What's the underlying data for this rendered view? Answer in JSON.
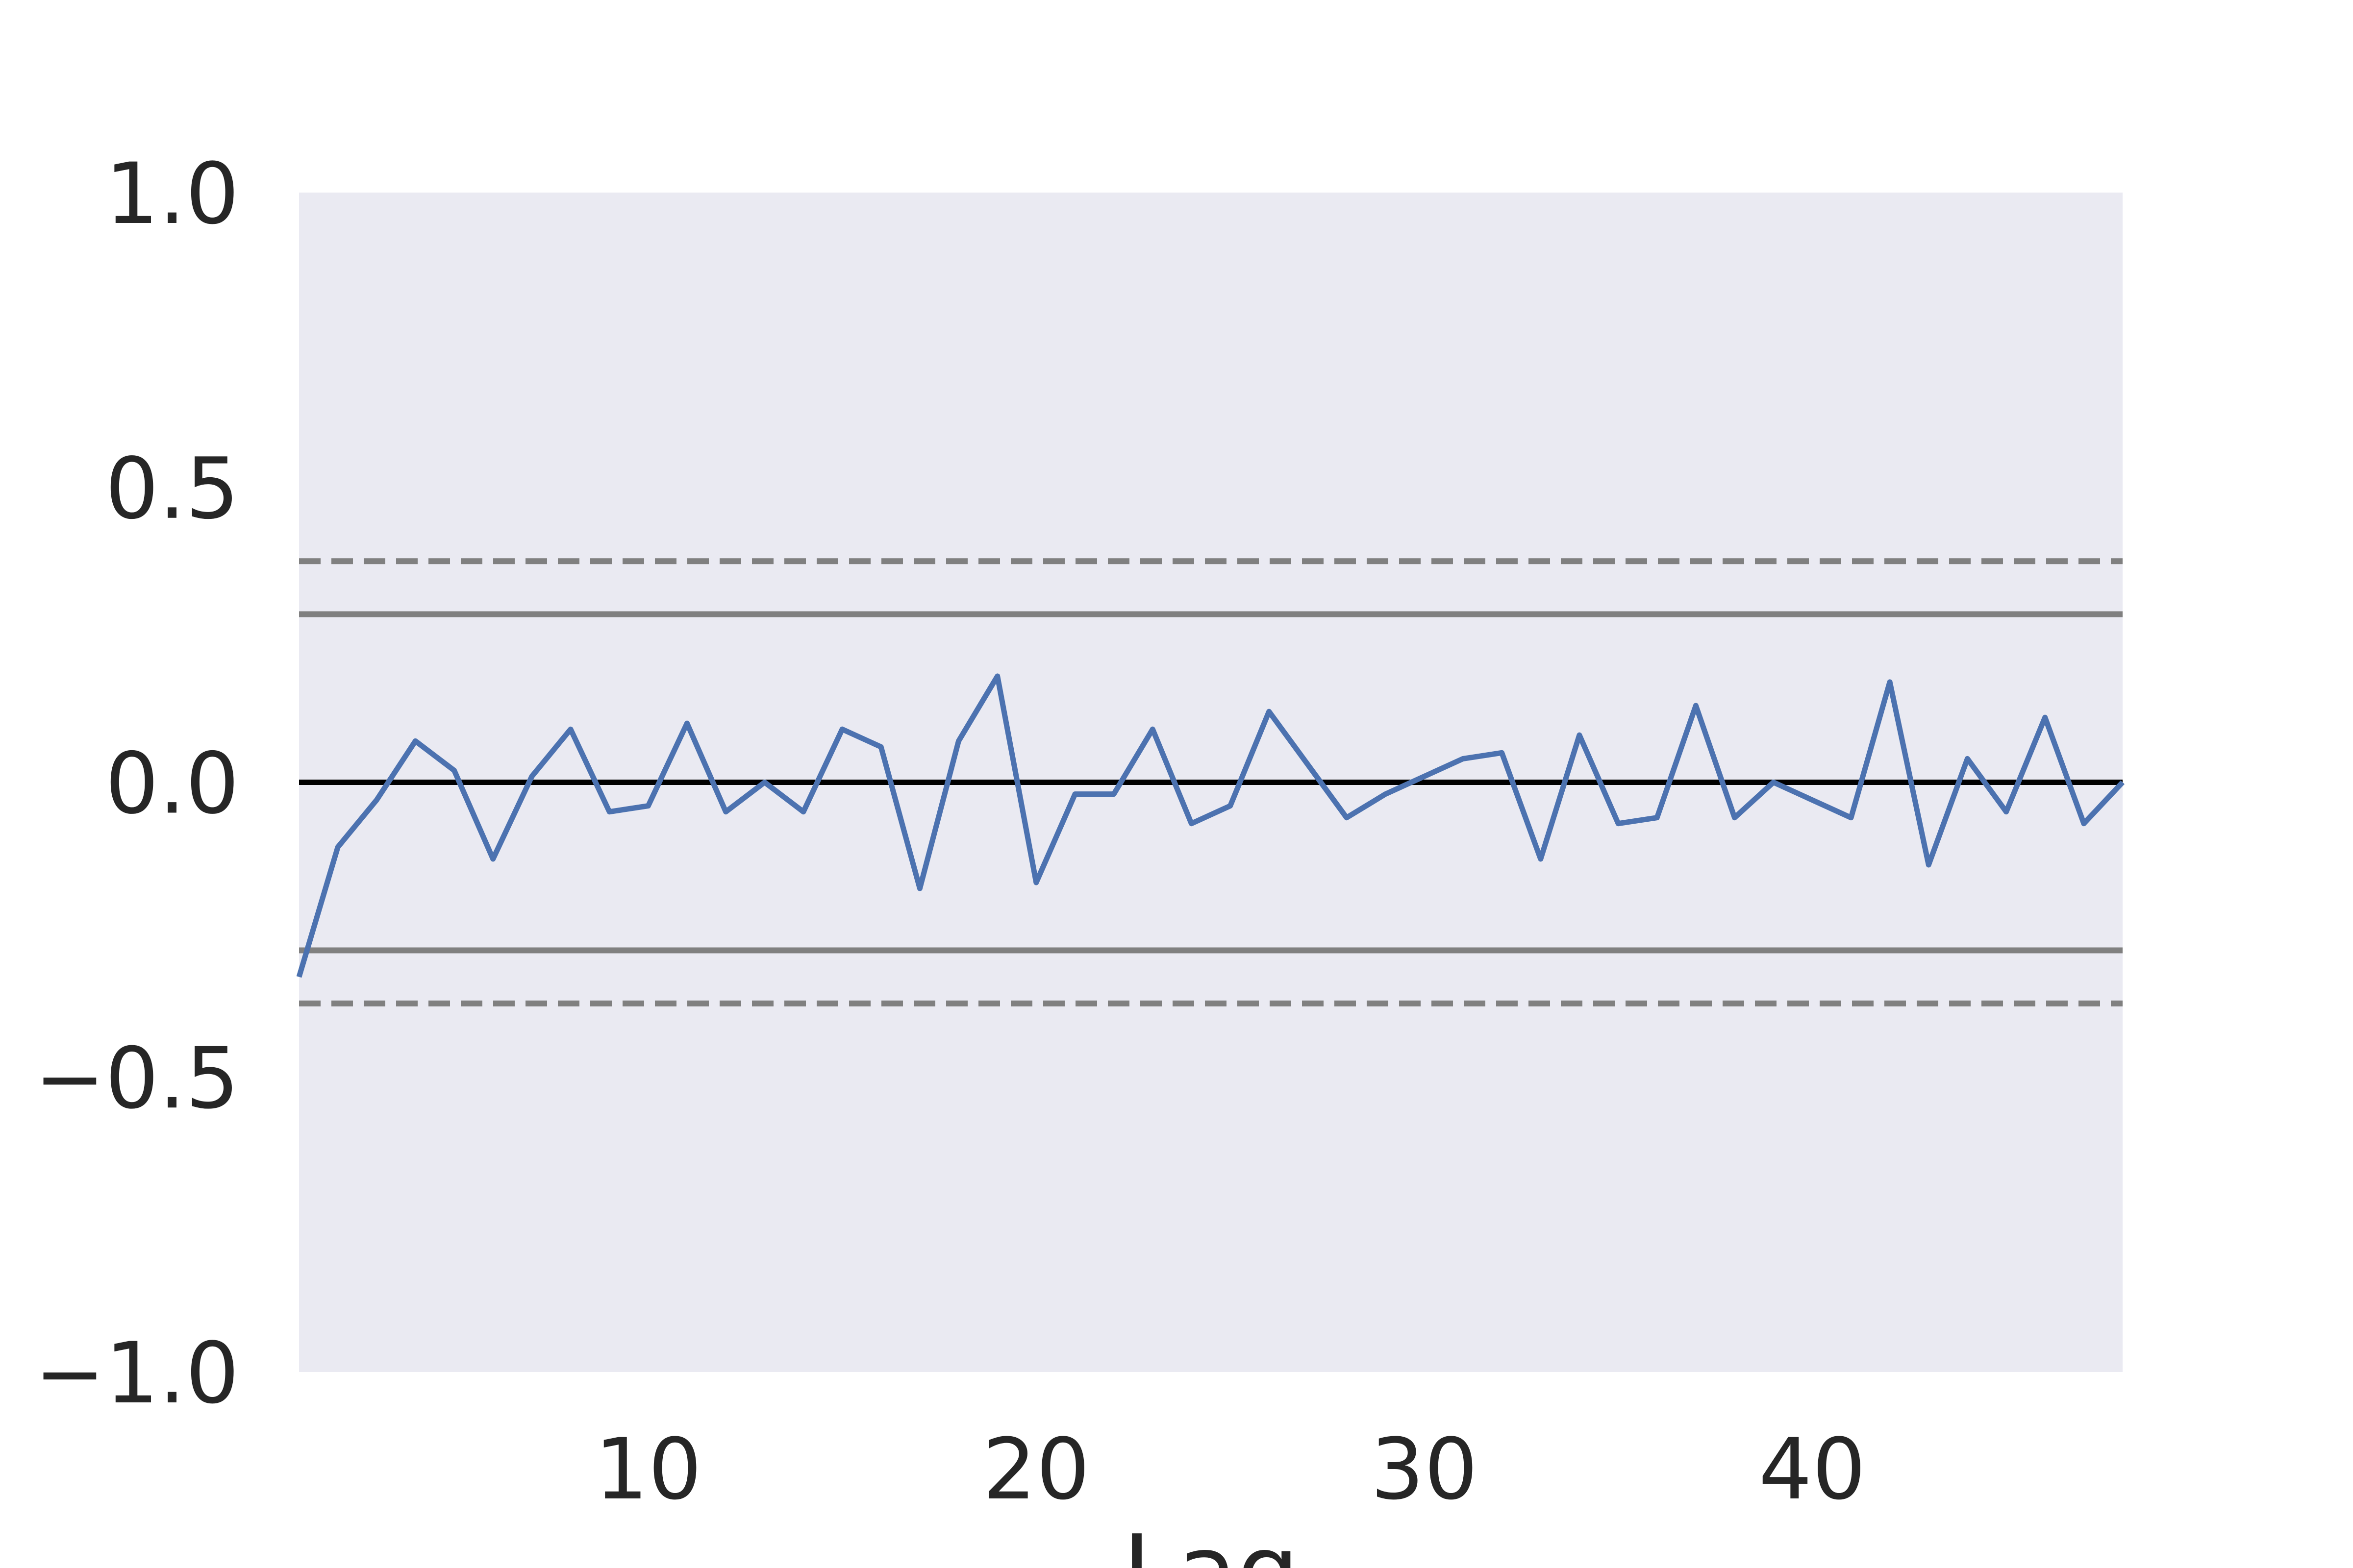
{
  "chart_data": {
    "type": "line",
    "title": "",
    "xlabel": "Lag",
    "ylabel": "",
    "xlim": [
      1,
      48
    ],
    "ylim": [
      -1.0,
      1.0
    ],
    "grid": false,
    "xticks": [
      10,
      20,
      30,
      40
    ],
    "xtick_labels": [
      "10",
      "20",
      "30",
      "40"
    ],
    "yticks": [
      1.0,
      0.5,
      0.0,
      -0.5,
      -1.0
    ],
    "ytick_labels": [
      "1.0",
      "0.5",
      "0.0",
      "−0.5",
      "−1.0"
    ],
    "colors": {
      "plot_background": "#eaeaf2",
      "series": "#4c72b0",
      "zero_line": "#000000",
      "confidence_lines": "#808080"
    },
    "reference_lines": [
      {
        "y": 0.0,
        "style": "solid",
        "color": "#000000"
      },
      {
        "y": 0.285,
        "style": "solid",
        "color": "#808080"
      },
      {
        "y": -0.285,
        "style": "solid",
        "color": "#808080"
      },
      {
        "y": 0.375,
        "style": "dashed",
        "color": "#808080"
      },
      {
        "y": -0.375,
        "style": "dashed",
        "color": "#808080"
      }
    ],
    "series": [
      {
        "x": [
          1,
          2,
          3,
          4,
          5,
          6,
          7,
          8,
          9,
          10,
          11,
          12,
          13,
          14,
          15,
          16,
          17,
          18,
          19,
          20,
          21,
          22,
          23,
          24,
          25,
          26,
          27,
          28,
          29,
          30,
          31,
          32,
          33,
          34,
          35,
          36,
          37,
          38,
          39,
          40,
          41,
          42,
          43,
          44,
          45,
          46,
          47,
          48
        ],
        "values": [
          -0.33,
          -0.11,
          -0.03,
          0.07,
          0.02,
          -0.13,
          0.01,
          0.09,
          -0.05,
          -0.04,
          0.1,
          -0.05,
          0.0,
          -0.05,
          0.09,
          0.06,
          -0.18,
          0.07,
          0.18,
          -0.17,
          -0.02,
          -0.02,
          0.09,
          -0.07,
          -0.04,
          0.12,
          0.03,
          -0.06,
          -0.02,
          0.01,
          0.04,
          0.05,
          -0.13,
          0.08,
          -0.07,
          -0.06,
          0.13,
          -0.06,
          0.0,
          -0.03,
          -0.06,
          0.17,
          -0.14,
          0.04,
          -0.05,
          0.11,
          -0.07,
          0.0
        ]
      }
    ]
  }
}
